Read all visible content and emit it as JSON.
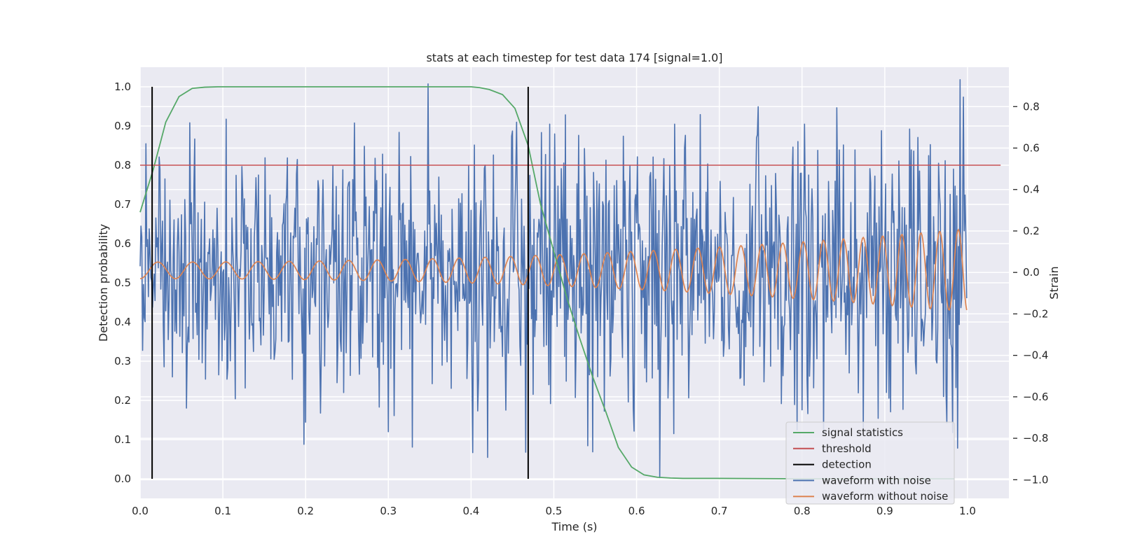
{
  "chart_data": {
    "type": "line",
    "title": "stats at each timestep for test data 174 [signal=1.0]",
    "xlabel": "Time (s)",
    "ylabel_left": "Detection probability",
    "ylabel_right": "Strain",
    "xlim": [
      0.0,
      1.05
    ],
    "ylim_left": [
      -0.05,
      1.05
    ],
    "ylim_right": [
      -1.09,
      0.99
    ],
    "x_ticks": [
      "0.0",
      "0.1",
      "0.2",
      "0.3",
      "0.4",
      "0.5",
      "0.6",
      "0.7",
      "0.8",
      "0.9",
      "1.0"
    ],
    "y_ticks_left": [
      "0.0",
      "0.1",
      "0.2",
      "0.3",
      "0.4",
      "0.5",
      "0.6",
      "0.7",
      "0.8",
      "0.9",
      "1.0"
    ],
    "y_ticks_right": [
      "−1.0",
      "−0.8",
      "−0.6",
      "−0.4",
      "−0.2",
      "0.0",
      "0.2",
      "0.4",
      "0.6",
      "0.8"
    ],
    "grid": true,
    "legend_position": "lower-right",
    "series": [
      {
        "name": "signal statistics",
        "axis": "left",
        "color": "#55a868",
        "x": [
          0.0,
          0.016,
          0.031,
          0.047,
          0.063,
          0.078,
          0.094,
          0.11,
          0.125,
          0.2,
          0.3,
          0.4,
          0.41,
          0.422,
          0.438,
          0.453,
          0.469,
          0.484,
          0.5,
          0.516,
          0.531,
          0.547,
          0.563,
          0.578,
          0.594,
          0.609,
          0.625,
          0.641,
          0.656,
          0.7,
          0.8,
          0.9,
          0.984
        ],
        "values": [
          0.68,
          0.79,
          0.91,
          0.975,
          0.996,
          0.999,
          1.0,
          1.0,
          1.0,
          1.0,
          1.0,
          1.0,
          0.998,
          0.993,
          0.98,
          0.945,
          0.85,
          0.7,
          0.58,
          0.46,
          0.36,
          0.26,
          0.17,
          0.08,
          0.03,
          0.01,
          0.004,
          0.002,
          0.001,
          0.001,
          0.0,
          0.0,
          0.0
        ]
      },
      {
        "name": "threshold",
        "axis": "left",
        "color": "#c44e52",
        "x": [
          0.0,
          1.04
        ],
        "values": [
          0.8,
          0.8
        ]
      },
      {
        "name": "detection",
        "axis": "left",
        "color": "#000000",
        "segments": [
          {
            "x": 0.0145,
            "y": [
              0.0,
              1.0
            ]
          },
          {
            "x": 0.469,
            "y": [
              0.0,
              1.0
            ]
          }
        ]
      },
      {
        "name": "waveform with noise",
        "axis": "right",
        "color": "#4c72b0",
        "generated": {
          "n": 1000,
          "x_start": 0.0,
          "x_end": 0.999,
          "seed": 174,
          "amplitude": 0.33,
          "clip": [
            -0.99,
            0.93
          ]
        }
      },
      {
        "name": "waveform without noise",
        "axis": "right",
        "color": "#dd8452",
        "generated": {
          "n": 1000,
          "x_start": 0.0,
          "x_end": 0.999,
          "chirp_cycles_start": 23,
          "chirp_cycles_end": 45,
          "amp_start": 0.04,
          "amp_end": 0.2
        }
      }
    ]
  }
}
